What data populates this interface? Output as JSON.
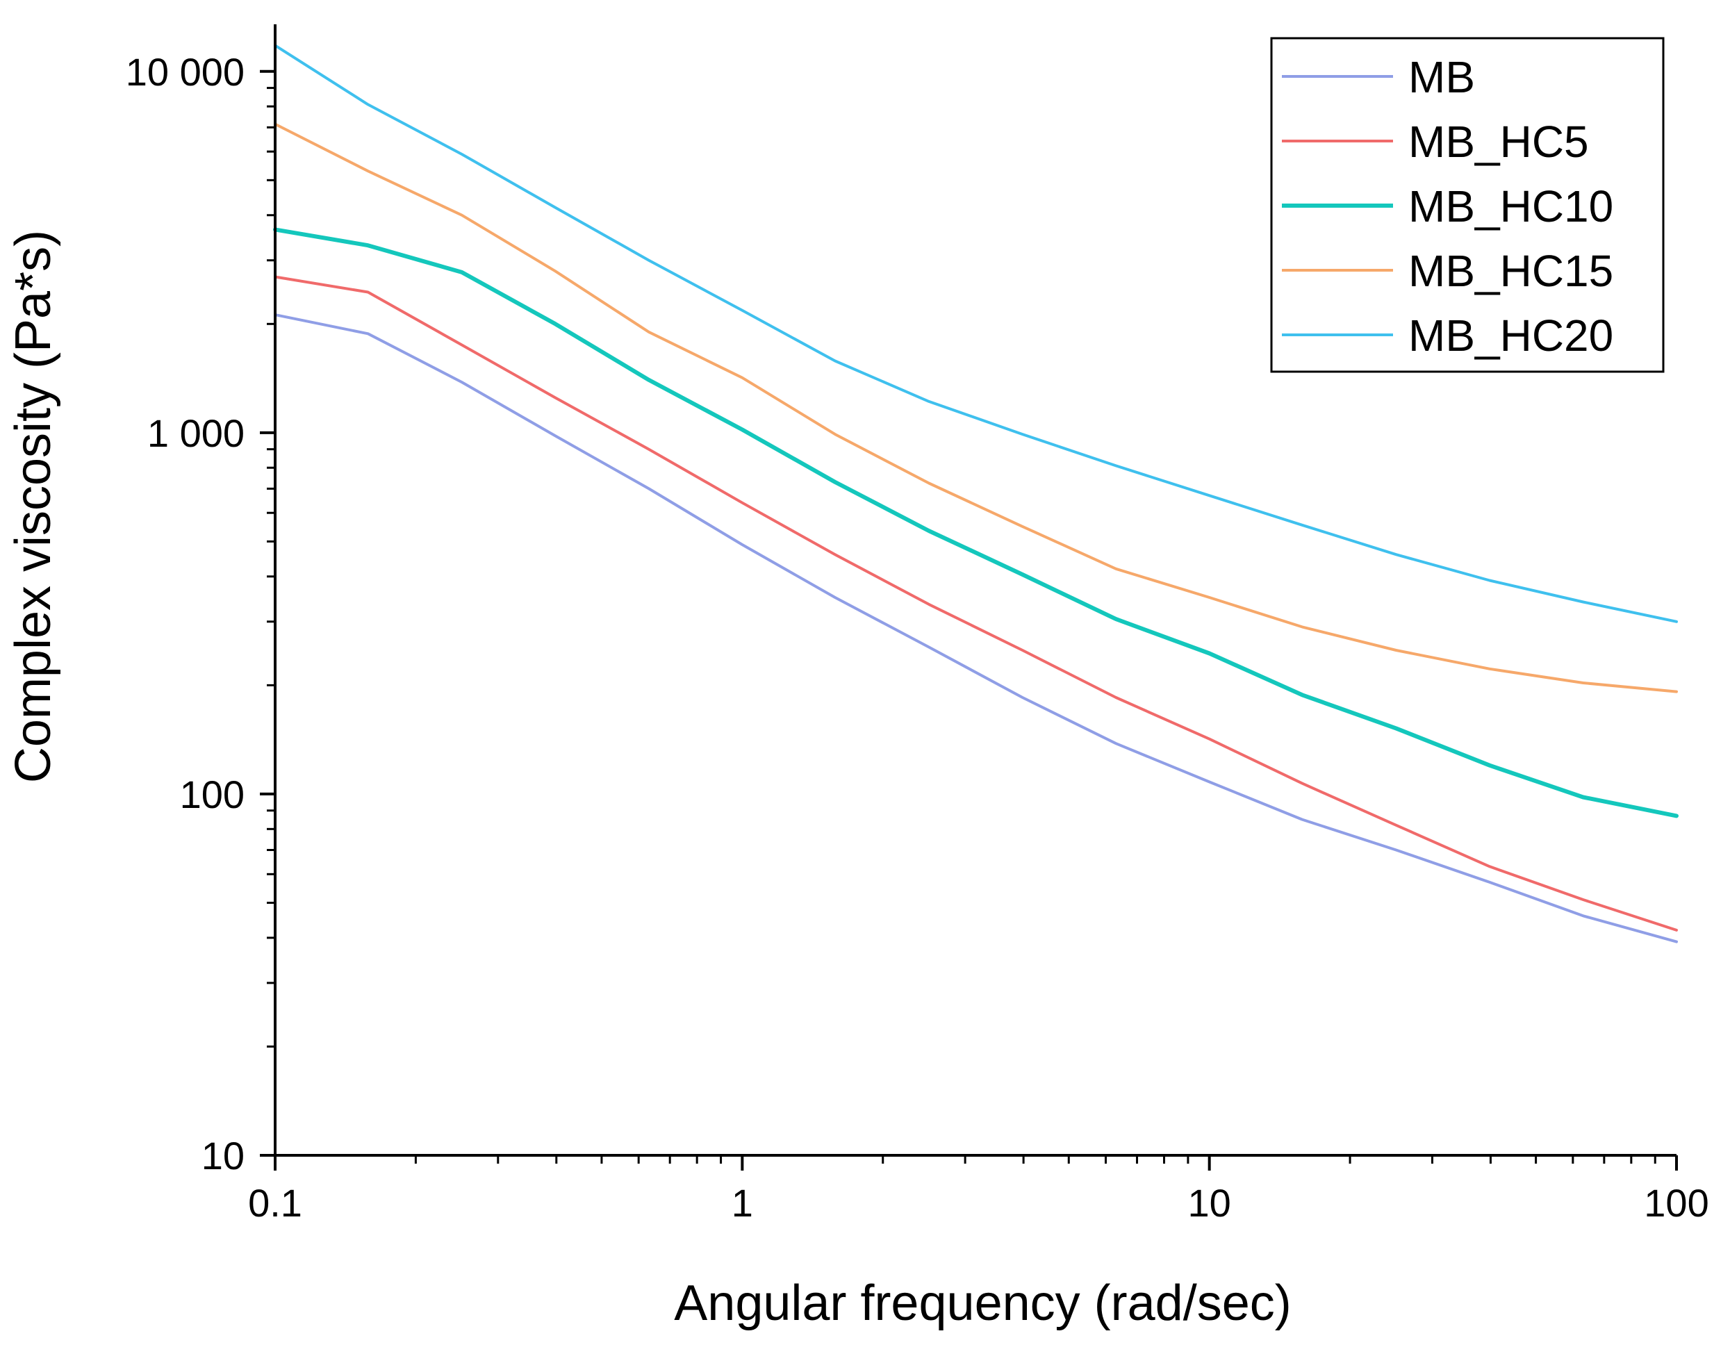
{
  "chart_data": {
    "type": "line",
    "title": "",
    "xlabel": "Angular frequency (rad/sec)",
    "ylabel": "Complex viscosity (Pa*s)",
    "xscale": "log",
    "yscale": "log",
    "xlim": [
      0.1,
      100
    ],
    "ylim": [
      10,
      13500
    ],
    "x_ticks": [
      {
        "value": 0.1,
        "label": "0.1"
      },
      {
        "value": 1,
        "label": "1"
      },
      {
        "value": 10,
        "label": "10"
      },
      {
        "value": 100,
        "label": "100"
      }
    ],
    "y_ticks": [
      {
        "value": 10,
        "label": "10"
      },
      {
        "value": 100,
        "label": "100"
      },
      {
        "value": 1000,
        "label": "1 000"
      },
      {
        "value": 10000,
        "label": "10 000"
      }
    ],
    "grid": false,
    "legend_position": "top-right",
    "x": [
      0.1,
      0.158,
      0.251,
      0.398,
      0.631,
      1,
      1.58,
      2.51,
      3.98,
      6.31,
      10,
      15.8,
      25.1,
      39.8,
      63.1,
      100
    ],
    "series": [
      {
        "name": "MB",
        "color": "#8f9ee6",
        "values": [
          2120,
          1880,
          1380,
          980,
          700,
          490,
          350,
          255,
          185,
          138,
          108,
          85,
          70,
          57,
          46,
          39
        ]
      },
      {
        "name": "MB_HC5",
        "color": "#f06a6a",
        "values": [
          2700,
          2450,
          1750,
          1250,
          900,
          640,
          460,
          335,
          250,
          185,
          142,
          107,
          82,
          63,
          51,
          42
        ]
      },
      {
        "name": "MB_HC10",
        "color": "#14c7bc",
        "values": [
          3650,
          3300,
          2780,
          2000,
          1400,
          1020,
          730,
          535,
          405,
          305,
          245,
          188,
          152,
          120,
          98,
          87
        ]
      },
      {
        "name": "MB_HC15",
        "color": "#f6a86a",
        "values": [
          7150,
          5300,
          4000,
          2800,
          1900,
          1420,
          990,
          725,
          550,
          420,
          350,
          290,
          250,
          222,
          203,
          192
        ]
      },
      {
        "name": "MB_HC20",
        "color": "#3fc0ee",
        "values": [
          11800,
          8100,
          5900,
          4200,
          3000,
          2180,
          1580,
          1220,
          990,
          810,
          670,
          555,
          460,
          390,
          340,
          300
        ]
      }
    ]
  }
}
